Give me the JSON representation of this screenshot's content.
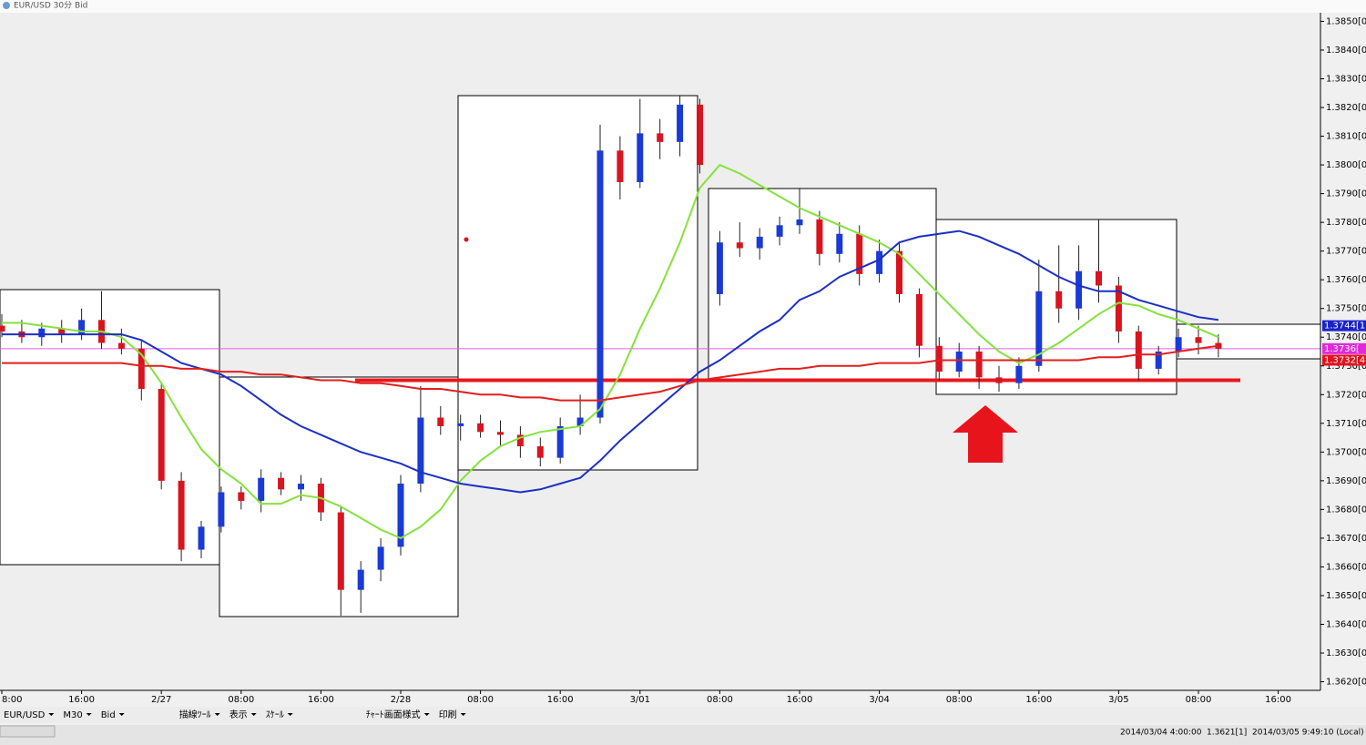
{
  "window_title": "EUR/USD 30分 Bid",
  "chart_data": {
    "type": "candlestick",
    "categories": [
      "8:00",
      null,
      null,
      null,
      "16:00",
      null,
      null,
      null,
      "2/27",
      null,
      null,
      null,
      "08:00",
      null,
      null,
      null,
      "16:00",
      null,
      null,
      null,
      "2/28",
      null,
      null,
      null,
      "08:00",
      null,
      null,
      null,
      "16:00",
      null,
      null,
      null,
      "3/01",
      null,
      null,
      null,
      "08:00",
      null,
      null,
      null,
      "16:00",
      null,
      null,
      null,
      "3/04",
      null,
      null,
      null,
      "08:00",
      null,
      null,
      null,
      "16:00",
      null,
      null,
      null,
      "3/05",
      null,
      null,
      null,
      "08:00",
      null,
      null,
      null,
      "16:00",
      null
    ],
    "open": [
      1.3744,
      1.3742,
      1.374,
      1.3743,
      1.3741,
      1.3746,
      1.3738,
      1.3736,
      1.3722,
      1.369,
      1.3666,
      1.3674,
      1.3686,
      1.3683,
      1.3691,
      1.3687,
      1.3689,
      1.3679,
      1.3652,
      1.3659,
      1.3667,
      1.3689,
      1.3712,
      1.3709,
      1.371,
      1.3707,
      1.3706,
      1.3702,
      1.3698,
      1.3709,
      1.3712,
      1.3805,
      1.3794,
      1.3811,
      1.3808,
      1.3821,
      1.3755,
      1.3773,
      1.3771,
      1.3775,
      1.3779,
      1.3781,
      1.3769,
      1.3776,
      1.3762,
      1.377,
      1.3755,
      1.3737,
      1.3728,
      1.3735,
      1.3726,
      1.3724,
      1.373,
      1.3756,
      1.375,
      1.3763,
      1.3758,
      1.3742,
      1.3729,
      1.3735,
      1.374,
      1.3738,
      null,
      null,
      null,
      null
    ],
    "high": [
      1.3748,
      1.3746,
      1.3745,
      1.3746,
      1.375,
      1.3756,
      1.3743,
      1.3739,
      1.3724,
      1.3693,
      1.3676,
      1.3688,
      1.3688,
      1.3694,
      1.3693,
      1.3692,
      1.3691,
      1.3681,
      1.3662,
      1.367,
      1.3692,
      1.3723,
      1.3716,
      1.3713,
      1.3713,
      1.3711,
      1.3709,
      1.3705,
      1.3712,
      1.372,
      1.3814,
      1.381,
      1.3823,
      1.3816,
      1.3824,
      1.3823,
      1.3777,
      1.378,
      1.3778,
      1.3782,
      1.3792,
      1.3784,
      1.378,
      1.3779,
      1.3774,
      1.3773,
      1.3757,
      1.374,
      1.3738,
      1.3737,
      1.373,
      1.3733,
      1.3767,
      1.3772,
      1.3772,
      1.3781,
      1.3761,
      1.3744,
      1.3737,
      1.3743,
      1.3744,
      1.3741,
      null,
      null,
      null,
      null
    ],
    "low": [
      1.374,
      1.3738,
      1.3737,
      1.3738,
      1.3739,
      1.3736,
      1.3734,
      1.3718,
      1.3687,
      1.3662,
      1.3663,
      1.3672,
      1.368,
      1.3679,
      1.3685,
      1.3683,
      1.3676,
      1.3643,
      1.3644,
      1.3655,
      1.3664,
      1.3686,
      1.3706,
      1.3704,
      1.3705,
      1.3702,
      1.3698,
      1.3695,
      1.3696,
      1.3706,
      1.371,
      1.3788,
      1.3792,
      1.3802,
      1.3803,
      1.3797,
      1.3751,
      1.3768,
      1.3767,
      1.3772,
      1.3776,
      1.3765,
      1.3766,
      1.3758,
      1.3759,
      1.3752,
      1.3733,
      1.3725,
      1.3726,
      1.3722,
      1.3721,
      1.3722,
      1.3728,
      1.3745,
      1.3746,
      1.3752,
      1.3738,
      1.3725,
      1.3727,
      1.3733,
      1.3734,
      1.3733,
      null,
      null,
      null,
      null
    ],
    "close": [
      1.3742,
      1.374,
      1.3743,
      1.3741,
      1.3746,
      1.3738,
      1.3736,
      1.3722,
      1.369,
      1.3666,
      1.3674,
      1.3686,
      1.3683,
      1.3691,
      1.3687,
      1.3689,
      1.3679,
      1.3652,
      1.3659,
      1.3667,
      1.3689,
      1.3712,
      1.3709,
      1.371,
      1.3707,
      1.3706,
      1.3702,
      1.3698,
      1.3709,
      1.3712,
      1.3805,
      1.3794,
      1.3811,
      1.3808,
      1.3821,
      1.38,
      1.3773,
      1.3771,
      1.3775,
      1.3779,
      1.3781,
      1.3769,
      1.3776,
      1.3762,
      1.377,
      1.3755,
      1.3737,
      1.3728,
      1.3735,
      1.3726,
      1.3724,
      1.373,
      1.3756,
      1.375,
      1.3763,
      1.3758,
      1.3742,
      1.3729,
      1.3735,
      1.374,
      1.3738,
      1.3736,
      null,
      null,
      null,
      null
    ],
    "up_color": "#1a3ad6",
    "down_color": "#d8141e",
    "moving_averages": [
      {
        "color": "#86e23c",
        "values": [
          1.3745,
          1.3745,
          1.3744,
          1.3743,
          1.3742,
          1.3742,
          1.374,
          1.3734,
          1.3724,
          1.3712,
          1.3701,
          1.3694,
          1.3689,
          1.3682,
          1.3682,
          1.3685,
          1.3684,
          1.3681,
          1.3677,
          1.3673,
          1.367,
          1.3674,
          1.368,
          1.369,
          1.3697,
          1.3702,
          1.3705,
          1.3707,
          1.3708,
          1.3709,
          1.3715,
          1.3727,
          1.3743,
          1.3757,
          1.3773,
          1.3792,
          1.38,
          1.3797,
          1.3793,
          1.3789,
          1.3785,
          1.3782,
          1.3779,
          1.3776,
          1.3773,
          1.3769,
          1.3762,
          1.3755,
          1.3748,
          1.3741,
          1.3735,
          1.3731,
          1.3734,
          1.3738,
          1.3743,
          1.3748,
          1.3752,
          1.3751,
          1.3748,
          1.3746,
          1.3743,
          1.374,
          null,
          null,
          null,
          null
        ]
      },
      {
        "color": "#1c2fc4",
        "values": [
          1.3741,
          1.3741,
          1.3741,
          1.3741,
          1.3741,
          1.3741,
          1.3741,
          1.3739,
          1.3735,
          1.3731,
          1.3729,
          1.3727,
          1.3723,
          1.3718,
          1.3713,
          1.3709,
          1.3706,
          1.3703,
          1.37,
          1.3698,
          1.3696,
          1.3693,
          1.3691,
          1.3689,
          1.3688,
          1.3687,
          1.3686,
          1.3687,
          1.3689,
          1.3691,
          1.3697,
          1.3704,
          1.371,
          1.3716,
          1.3722,
          1.3728,
          1.3732,
          1.3737,
          1.3742,
          1.3746,
          1.3753,
          1.3756,
          1.3761,
          1.3764,
          1.3767,
          1.3773,
          1.3775,
          1.3776,
          1.3777,
          1.3775,
          1.3772,
          1.3769,
          1.3765,
          1.3761,
          1.3758,
          1.3756,
          1.3756,
          1.3753,
          1.3751,
          1.3749,
          1.3747,
          1.3746,
          null,
          null,
          null,
          null
        ]
      },
      {
        "color": "#e0201e",
        "values": [
          1.3731,
          1.3731,
          1.3731,
          1.3731,
          1.3731,
          1.3731,
          1.3731,
          1.373,
          1.373,
          1.3729,
          1.3729,
          1.3728,
          1.3728,
          1.3727,
          1.3727,
          1.3726,
          1.3725,
          1.3725,
          1.3724,
          1.3724,
          1.3723,
          1.3722,
          1.3722,
          1.3721,
          1.372,
          1.372,
          1.3719,
          1.3719,
          1.3718,
          1.3718,
          1.3718,
          1.3719,
          1.372,
          1.3721,
          1.3723,
          1.3725,
          1.3726,
          1.3727,
          1.3728,
          1.3729,
          1.3729,
          1.373,
          1.373,
          1.373,
          1.3731,
          1.3731,
          1.3731,
          1.3732,
          1.3732,
          1.3732,
          1.3732,
          1.3732,
          1.3732,
          1.3732,
          1.3732,
          1.3733,
          1.3733,
          1.3734,
          1.3734,
          1.3735,
          1.3736,
          1.3737,
          null,
          null,
          null,
          null
        ]
      }
    ],
    "reference_lines": [
      {
        "value": 1.3736,
        "color": "#e65ce6"
      },
      {
        "value": 1.3725,
        "color": "#e8171c"
      }
    ],
    "price_tags": [
      {
        "value": 1.3744,
        "label": "1.3744[1",
        "color": "#1a22c8"
      },
      {
        "value": 1.3736,
        "label": "1.3736[",
        "color": "#e02ad8"
      },
      {
        "value": 1.3732,
        "label": "1.3732[4",
        "color": "#e0141e"
      }
    ],
    "ylim": [
      1.3617,
      1.3853
    ],
    "yticks": [
      {
        "value": 1.362,
        "label": "1.3620[0]"
      },
      {
        "value": 1.363,
        "label": "1.3630[0]"
      },
      {
        "value": 1.364,
        "label": "1.3640[0]"
      },
      {
        "value": 1.365,
        "label": "1.3650[0]"
      },
      {
        "value": 1.366,
        "label": "1.3660[0]"
      },
      {
        "value": 1.367,
        "label": "1.3670[0]"
      },
      {
        "value": 1.368,
        "label": "1.3680[0]"
      },
      {
        "value": 1.369,
        "label": "1.3690[0]"
      },
      {
        "value": 1.37,
        "label": "1.3700[0]"
      },
      {
        "value": 1.371,
        "label": "1.3710[0]"
      },
      {
        "value": 1.372,
        "label": "1.3720[0]"
      },
      {
        "value": 1.373,
        "label": "1.3730[0]"
      },
      {
        "value": 1.374,
        "label": "1.3740[0]"
      },
      {
        "value": 1.375,
        "label": "1.3750[0]"
      },
      {
        "value": 1.376,
        "label": "1.3760[0]"
      },
      {
        "value": 1.377,
        "label": "1.3770[0]"
      },
      {
        "value": 1.378,
        "label": "1.3780[0]"
      },
      {
        "value": 1.379,
        "label": "1.3790[0]"
      },
      {
        "value": 1.38,
        "label": "1.3800[0]"
      },
      {
        "value": 1.381,
        "label": "1.3810[0]"
      },
      {
        "value": 1.382,
        "label": "1.3820[0]"
      },
      {
        "value": 1.383,
        "label": "1.3830[0]"
      },
      {
        "value": 1.384,
        "label": "1.3840[0]"
      },
      {
        "value": 1.385,
        "label": "1.3850[0]"
      }
    ]
  },
  "toolbar": [
    "EUR/USD",
    "M30",
    "Bid",
    "描線ﾂｰﾙ",
    "表示",
    "ｽｹｰﾙ",
    "ﾁｬｰﾄ画面様式",
    "印刷"
  ],
  "status": [
    "2014/03/04 4:00:00",
    "1.3621[1]",
    "2014/03/05 9:49:10 (Local)"
  ]
}
